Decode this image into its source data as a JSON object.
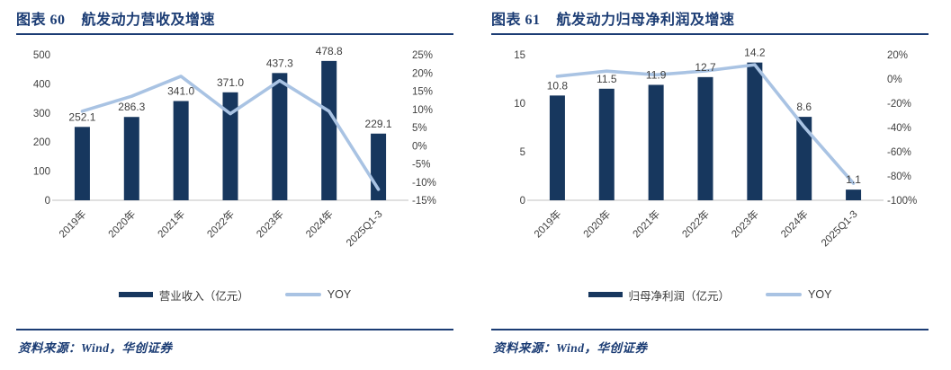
{
  "colors": {
    "accent": "#1B3C74",
    "bar": "#17375E",
    "line": "#A9C3E3",
    "tick": "#404040",
    "data_label": "#404040",
    "axis_line": "#D6D6D6"
  },
  "panels": [
    {
      "title_prefix": "图表 60",
      "title": "航发动力营收及增速",
      "source": "资料来源：Wind，华创证券",
      "legend": [
        {
          "type": "bar",
          "label": "营业收入（亿元）"
        },
        {
          "type": "line",
          "label": "YOY"
        }
      ],
      "chart_data": {
        "type": "bar",
        "title": "航发动力营收及增速",
        "categories": [
          "2019年",
          "2020年",
          "2021年",
          "2022年",
          "2023年",
          "2024年",
          "2025Q1-3"
        ],
        "series": [
          {
            "name": "营业收入（亿元）",
            "type": "bar",
            "axis": "left",
            "values": [
              252.1,
              286.3,
              341.0,
              371.0,
              437.3,
              478.8,
              229.1
            ],
            "labels": [
              "252.1",
              "286.3",
              "341.0",
              "371.0",
              "437.3",
              "478.8",
              "229.1"
            ]
          },
          {
            "name": "YOY",
            "type": "line",
            "axis": "right",
            "values": [
              9.5,
              13.6,
              19.1,
              8.8,
              17.9,
              9.5,
              -12.0
            ]
          }
        ],
        "left_axis": {
          "min": 0,
          "max": 500,
          "tick_values": [
            500,
            400,
            300,
            200,
            100,
            0
          ],
          "ticks": [
            "500",
            "400",
            "300",
            "200",
            "100",
            "0"
          ]
        },
        "right_axis": {
          "min": -15,
          "max": 25,
          "tick_values": [
            25,
            20,
            15,
            10,
            5,
            0,
            -5,
            -10,
            -15
          ],
          "ticks": [
            "25%",
            "20%",
            "15%",
            "10%",
            "5%",
            "0%",
            "-5%",
            "-10%",
            "-15%"
          ]
        },
        "grid": false,
        "legend_position": "bottom"
      }
    },
    {
      "title_prefix": "图表 61",
      "title": "航发动力归母净利润及增速",
      "source": "资料来源：Wind，华创证券",
      "legend": [
        {
          "type": "bar",
          "label": "归母净利润（亿元）"
        },
        {
          "type": "line",
          "label": "YOY"
        }
      ],
      "chart_data": {
        "type": "bar",
        "title": "航发动力归母净利润及增速",
        "categories": [
          "2019年",
          "2020年",
          "2021年",
          "2022年",
          "2023年",
          "2024年",
          "2025Q1-3"
        ],
        "series": [
          {
            "name": "归母净利润（亿元）",
            "type": "bar",
            "axis": "left",
            "values": [
              10.8,
              11.5,
              11.9,
              12.7,
              14.2,
              8.6,
              1.1
            ],
            "labels": [
              "10.8",
              "11.5",
              "11.9",
              "12.7",
              "14.2",
              "8.6",
              "1.1"
            ]
          },
          {
            "name": "YOY",
            "type": "line",
            "axis": "right",
            "values": [
              2.3,
              6.5,
              3.5,
              6.7,
              11.8,
              -39.4,
              -86.0
            ]
          }
        ],
        "left_axis": {
          "min": 0,
          "max": 15,
          "tick_values": [
            15,
            10,
            5,
            0
          ],
          "ticks": [
            "15",
            "10",
            "5",
            "0"
          ]
        },
        "right_axis": {
          "min": -100,
          "max": 20,
          "tick_values": [
            20,
            0,
            -20,
            -40,
            -60,
            -80,
            -100
          ],
          "ticks": [
            "20%",
            "0%",
            "-20%",
            "-40%",
            "-60%",
            "-80%",
            "-100%"
          ]
        },
        "grid": false,
        "legend_position": "bottom"
      }
    }
  ]
}
